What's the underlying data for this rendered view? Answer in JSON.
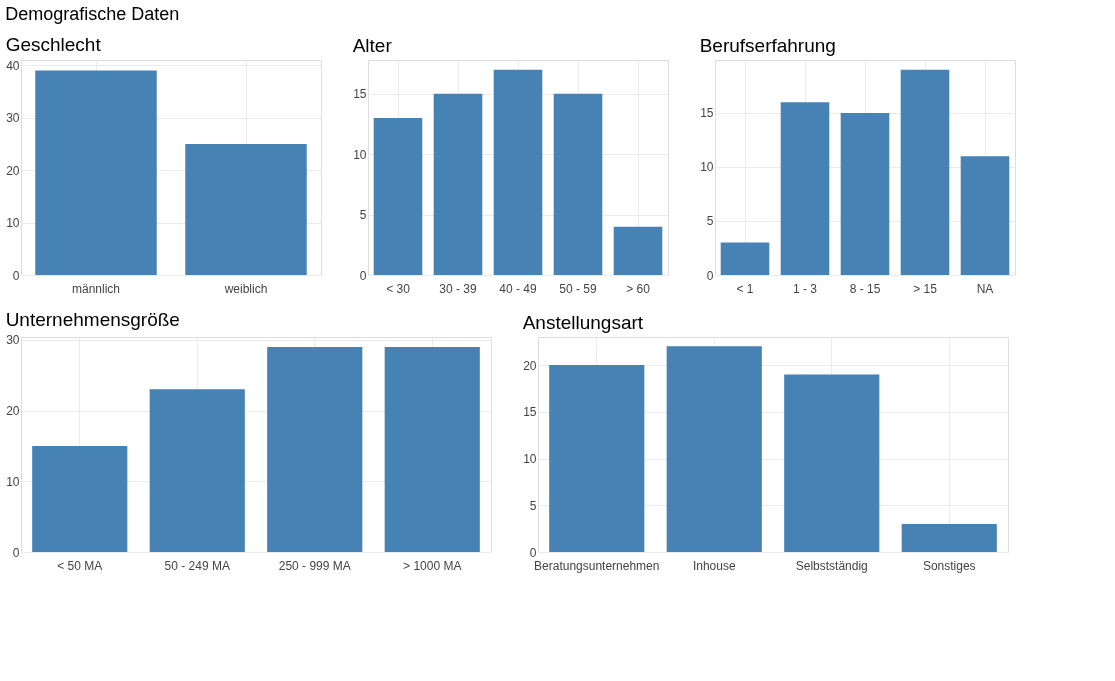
{
  "chart_data": [
    {
      "type": "bar",
      "title": "Geschlecht",
      "annotations": [
        "Demografische Daten"
      ],
      "categories": [
        "männlich",
        "weiblich"
      ],
      "series": [
        {
          "color": "#4682b4",
          "values": [
            39,
            25
          ]
        }
      ],
      "ylim": [
        0,
        41
      ],
      "yticks": [
        0,
        10,
        20,
        30,
        40
      ],
      "grid": true
    },
    {
      "type": "bar",
      "title": "Alter",
      "categories": [
        "< 30",
        "30 - 39",
        "40 - 49",
        "50 - 59",
        "> 60"
      ],
      "series": [
        {
          "color": "#4682b4",
          "values": [
            13,
            15,
            17,
            15,
            4
          ]
        }
      ],
      "ylim": [
        0,
        17.8
      ],
      "yticks": [
        0,
        5,
        10,
        15
      ],
      "grid": true
    },
    {
      "type": "bar",
      "title": "Berufserfahrung",
      "categories": [
        "< 1",
        "1 - 3",
        "8 - 15",
        "> 15",
        "NA"
      ],
      "series": [
        {
          "color": "#4682b4",
          "values": [
            3,
            16,
            15,
            19,
            11
          ]
        }
      ],
      "ylim": [
        0,
        19.9
      ],
      "yticks": [
        0,
        5,
        10,
        15
      ],
      "grid": true
    },
    {
      "type": "bar",
      "title": "Unternehmensgröße",
      "categories": [
        "< 50 MA",
        "50 - 249 MA",
        "250 - 999 MA",
        "> 1000 MA"
      ],
      "series": [
        {
          "color": "#4682b4",
          "values": [
            15,
            23,
            29,
            29
          ]
        }
      ],
      "ylim": [
        0,
        30.4
      ],
      "yticks": [
        0,
        10,
        20,
        30
      ],
      "grid": true
    },
    {
      "type": "bar",
      "title": "Anstellungsart",
      "categories": [
        "Beratungsunternehmen",
        "Inhouse",
        "Selbstständig",
        "Sonstiges"
      ],
      "series": [
        {
          "color": "#4682b4",
          "values": [
            20,
            22,
            19,
            3
          ]
        }
      ],
      "ylim": [
        0,
        23
      ],
      "yticks": [
        0,
        5,
        10,
        15,
        20
      ],
      "grid": true
    }
  ]
}
